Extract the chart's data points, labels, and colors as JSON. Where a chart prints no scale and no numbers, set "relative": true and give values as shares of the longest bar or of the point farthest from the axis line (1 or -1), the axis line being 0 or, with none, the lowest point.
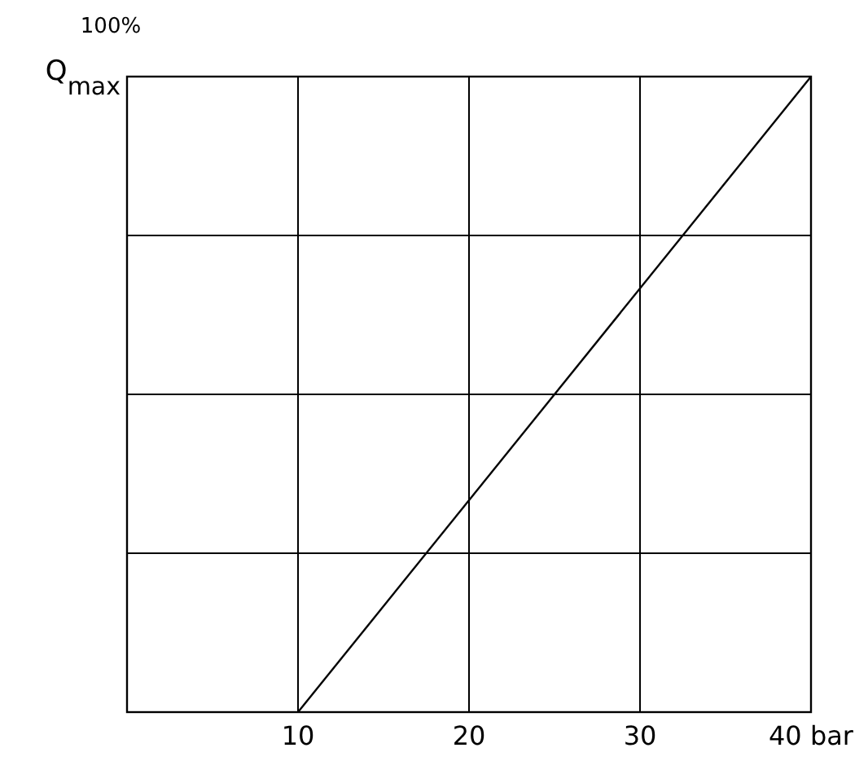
{
  "chart_data": {
    "type": "line",
    "ylabel": "Q$_{max}$",
    "annotations": [
      "100%"
    ],
    "relative": true,
    "x": [
      10,
      40
    ],
    "series": [
      {
        "color": "#000000",
        "values": [
          0,
          1
        ]
      }
    ],
    "xlim": [
      0,
      40
    ],
    "xticks": [
      10,
      20,
      30,
      {
        "value": 40,
        "label": "40 bar"
      }
    ],
    "grid": true,
    "marker": "none",
    "line_style": "solid"
  }
}
